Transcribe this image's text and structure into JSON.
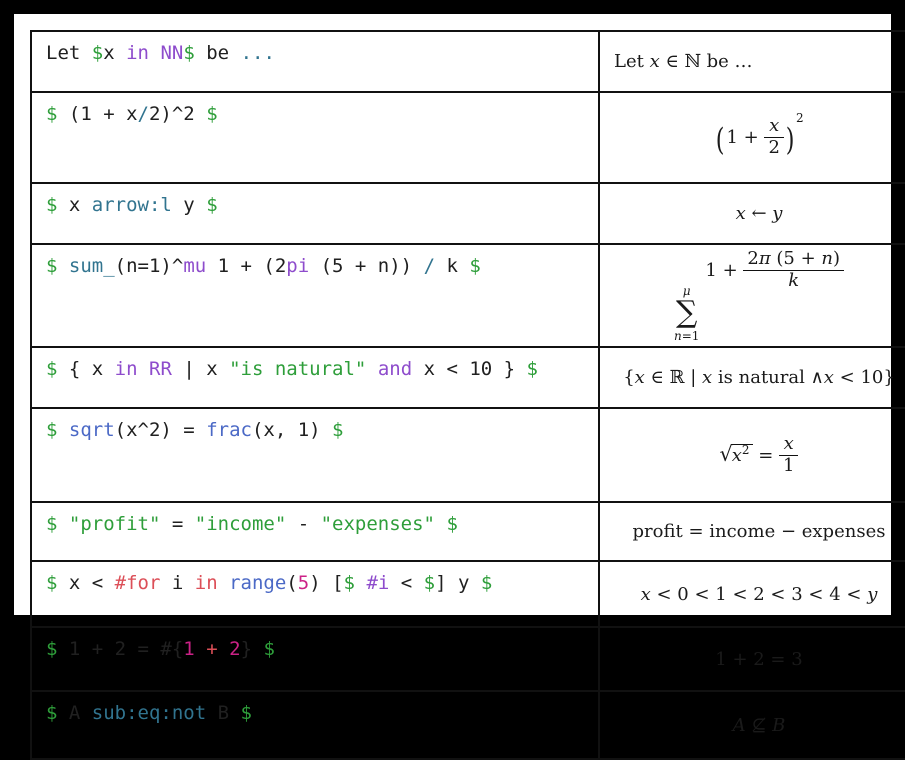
{
  "page": {
    "frame_color": "#000000",
    "panel_bg": "#ffffff",
    "border_color": "#111111"
  },
  "colors": {
    "pl": "#202020",
    "gr": "#2e9e3a",
    "pu": "#8e4ccc",
    "te": "#31748f",
    "bl": "#4b69c6",
    "re": "#dc4f58",
    "ma": "#cc2287"
  },
  "table": {
    "columns": [
      "source-code",
      "rendered-math"
    ],
    "rows": [
      {
        "code": [
          {
            "v": "Let ",
            "c": "pl"
          },
          {
            "v": "$",
            "c": "gr"
          },
          {
            "v": "x ",
            "c": "pl"
          },
          {
            "v": "in",
            "c": "pu"
          },
          {
            "v": " ",
            "c": "pl"
          },
          {
            "v": "NN",
            "c": "pu"
          },
          {
            "v": "$",
            "c": "gr"
          },
          {
            "v": " be ",
            "c": "pl"
          },
          {
            "v": "...",
            "c": "te"
          }
        ],
        "math": [
          {
            "t": "up",
            "v": "Let "
          },
          {
            "t": "it",
            "v": "x"
          },
          {
            "t": "up",
            "v": " ∈ ℕ be …"
          }
        ]
      },
      {
        "code": [
          {
            "v": "$",
            "c": "gr"
          },
          {
            "v": " (1 + x",
            "c": "pl"
          },
          {
            "v": "/",
            "c": "te"
          },
          {
            "v": "2)^2 ",
            "c": "pl"
          },
          {
            "v": "$",
            "c": "gr"
          }
        ],
        "math": [
          {
            "t": "paren",
            "open": "(",
            "close": ")",
            "sup": "2",
            "body": [
              {
                "t": "up",
                "v": "1 + "
              },
              {
                "t": "frac",
                "num": [
                  {
                    "t": "it",
                    "v": "x"
                  }
                ],
                "den": [
                  {
                    "t": "up",
                    "v": "2"
                  }
                ]
              }
            ]
          }
        ]
      },
      {
        "code": [
          {
            "v": "$",
            "c": "gr"
          },
          {
            "v": " x ",
            "c": "pl"
          },
          {
            "v": "arrow:l",
            "c": "te"
          },
          {
            "v": " y ",
            "c": "pl"
          },
          {
            "v": "$",
            "c": "gr"
          }
        ],
        "math": [
          {
            "t": "it",
            "v": "x"
          },
          {
            "t": "up",
            "v": " ← "
          },
          {
            "t": "it",
            "v": "y"
          }
        ]
      },
      {
        "code": [
          {
            "v": "$",
            "c": "gr"
          },
          {
            "v": " ",
            "c": "pl"
          },
          {
            "v": "sum_",
            "c": "te"
          },
          {
            "v": "(n=1)^",
            "c": "pl"
          },
          {
            "v": "mu",
            "c": "pu"
          },
          {
            "v": " 1 + (2",
            "c": "pl"
          },
          {
            "v": "pi",
            "c": "pu"
          },
          {
            "v": " (5 + n)) ",
            "c": "pl"
          },
          {
            "v": "/",
            "c": "te"
          },
          {
            "v": " k ",
            "c": "pl"
          },
          {
            "v": "$",
            "c": "gr"
          }
        ],
        "math": [
          {
            "t": "sum",
            "glyph": "∑",
            "top": [
              {
                "t": "it",
                "v": "μ"
              }
            ],
            "bot": [
              {
                "t": "it",
                "v": "n"
              },
              {
                "t": "up",
                "v": "=1"
              }
            ]
          },
          {
            "t": "up",
            "v": "1 + "
          },
          {
            "t": "frac",
            "num": [
              {
                "t": "up",
                "v": "2"
              },
              {
                "t": "it",
                "v": "π"
              },
              {
                "t": "up",
                "v": " (5 + "
              },
              {
                "t": "it",
                "v": "n"
              },
              {
                "t": "up",
                "v": ")"
              }
            ],
            "den": [
              {
                "t": "it",
                "v": "k"
              }
            ]
          }
        ]
      },
      {
        "code": [
          {
            "v": "$",
            "c": "gr"
          },
          {
            "v": " { x ",
            "c": "pl"
          },
          {
            "v": "in",
            "c": "pu"
          },
          {
            "v": " ",
            "c": "pl"
          },
          {
            "v": "RR",
            "c": "pu"
          },
          {
            "v": " | x ",
            "c": "pl"
          },
          {
            "v": "\"is natural\"",
            "c": "gr"
          },
          {
            "v": " ",
            "c": "pl"
          },
          {
            "v": "and",
            "c": "pu"
          },
          {
            "v": " x < 10 } ",
            "c": "pl"
          },
          {
            "v": "$",
            "c": "gr"
          }
        ],
        "math": [
          {
            "t": "up",
            "v": "{"
          },
          {
            "t": "it",
            "v": "x"
          },
          {
            "t": "up",
            "v": " ∈ ℝ | "
          },
          {
            "t": "it",
            "v": "x"
          },
          {
            "t": "up",
            "v": " is natural ∧"
          },
          {
            "t": "it",
            "v": "x"
          },
          {
            "t": "up",
            "v": " < 10}"
          }
        ]
      },
      {
        "code": [
          {
            "v": "$",
            "c": "gr"
          },
          {
            "v": " ",
            "c": "pl"
          },
          {
            "v": "sqrt",
            "c": "bl"
          },
          {
            "v": "(x^2) = ",
            "c": "pl"
          },
          {
            "v": "frac",
            "c": "bl"
          },
          {
            "v": "(x, 1) ",
            "c": "pl"
          },
          {
            "v": "$",
            "c": "gr"
          }
        ],
        "math": [
          {
            "t": "sqrt",
            "glyph": "√",
            "body": [
              {
                "t": "it",
                "v": "x"
              },
              {
                "t": "sup",
                "v": "2"
              }
            ]
          },
          {
            "t": "up",
            "v": " = "
          },
          {
            "t": "frac",
            "num": [
              {
                "t": "it",
                "v": "x"
              }
            ],
            "den": [
              {
                "t": "up",
                "v": "1"
              }
            ]
          }
        ]
      },
      {
        "code": [
          {
            "v": "$",
            "c": "gr"
          },
          {
            "v": " ",
            "c": "pl"
          },
          {
            "v": "\"profit\"",
            "c": "gr"
          },
          {
            "v": " = ",
            "c": "pl"
          },
          {
            "v": "\"income\"",
            "c": "gr"
          },
          {
            "v": " - ",
            "c": "pl"
          },
          {
            "v": "\"expenses\"",
            "c": "gr"
          },
          {
            "v": " ",
            "c": "pl"
          },
          {
            "v": "$",
            "c": "gr"
          }
        ],
        "math": [
          {
            "t": "up",
            "v": "profit = income − expenses"
          }
        ]
      },
      {
        "code": [
          {
            "v": "$",
            "c": "gr"
          },
          {
            "v": " x < ",
            "c": "pl"
          },
          {
            "v": "#for",
            "c": "re"
          },
          {
            "v": " i ",
            "c": "pl"
          },
          {
            "v": "in",
            "c": "re"
          },
          {
            "v": " ",
            "c": "pl"
          },
          {
            "v": "range",
            "c": "bl"
          },
          {
            "v": "(",
            "c": "pl"
          },
          {
            "v": "5",
            "c": "ma"
          },
          {
            "v": ") [",
            "c": "pl"
          },
          {
            "v": "$",
            "c": "gr"
          },
          {
            "v": " ",
            "c": "pl"
          },
          {
            "v": "#i",
            "c": "pu"
          },
          {
            "v": " < ",
            "c": "pl"
          },
          {
            "v": "$",
            "c": "gr"
          },
          {
            "v": "] y ",
            "c": "pl"
          },
          {
            "v": "$",
            "c": "gr"
          }
        ],
        "math": [
          {
            "t": "it",
            "v": "x"
          },
          {
            "t": "up",
            "v": " < 0 < 1 < 2 < 3 < 4 < "
          },
          {
            "t": "it",
            "v": "y"
          }
        ]
      },
      {
        "code": [
          {
            "v": "$",
            "c": "gr"
          },
          {
            "v": " 1 + 2 = #{",
            "c": "pl"
          },
          {
            "v": "1",
            "c": "ma"
          },
          {
            "v": " ",
            "c": "pl"
          },
          {
            "v": "+",
            "c": "re"
          },
          {
            "v": " ",
            "c": "pl"
          },
          {
            "v": "2",
            "c": "ma"
          },
          {
            "v": "} ",
            "c": "pl"
          },
          {
            "v": "$",
            "c": "gr"
          }
        ],
        "math": [
          {
            "t": "up",
            "v": "1 + 2 = 3"
          }
        ]
      },
      {
        "code": [
          {
            "v": "$",
            "c": "gr"
          },
          {
            "v": " A ",
            "c": "pl"
          },
          {
            "v": "sub:eq:not",
            "c": "te"
          },
          {
            "v": " B ",
            "c": "pl"
          },
          {
            "v": "$",
            "c": "gr"
          }
        ],
        "math": [
          {
            "t": "it",
            "v": "A"
          },
          {
            "t": "up",
            "v": " ⊈ "
          },
          {
            "t": "it",
            "v": "B"
          }
        ]
      }
    ]
  }
}
